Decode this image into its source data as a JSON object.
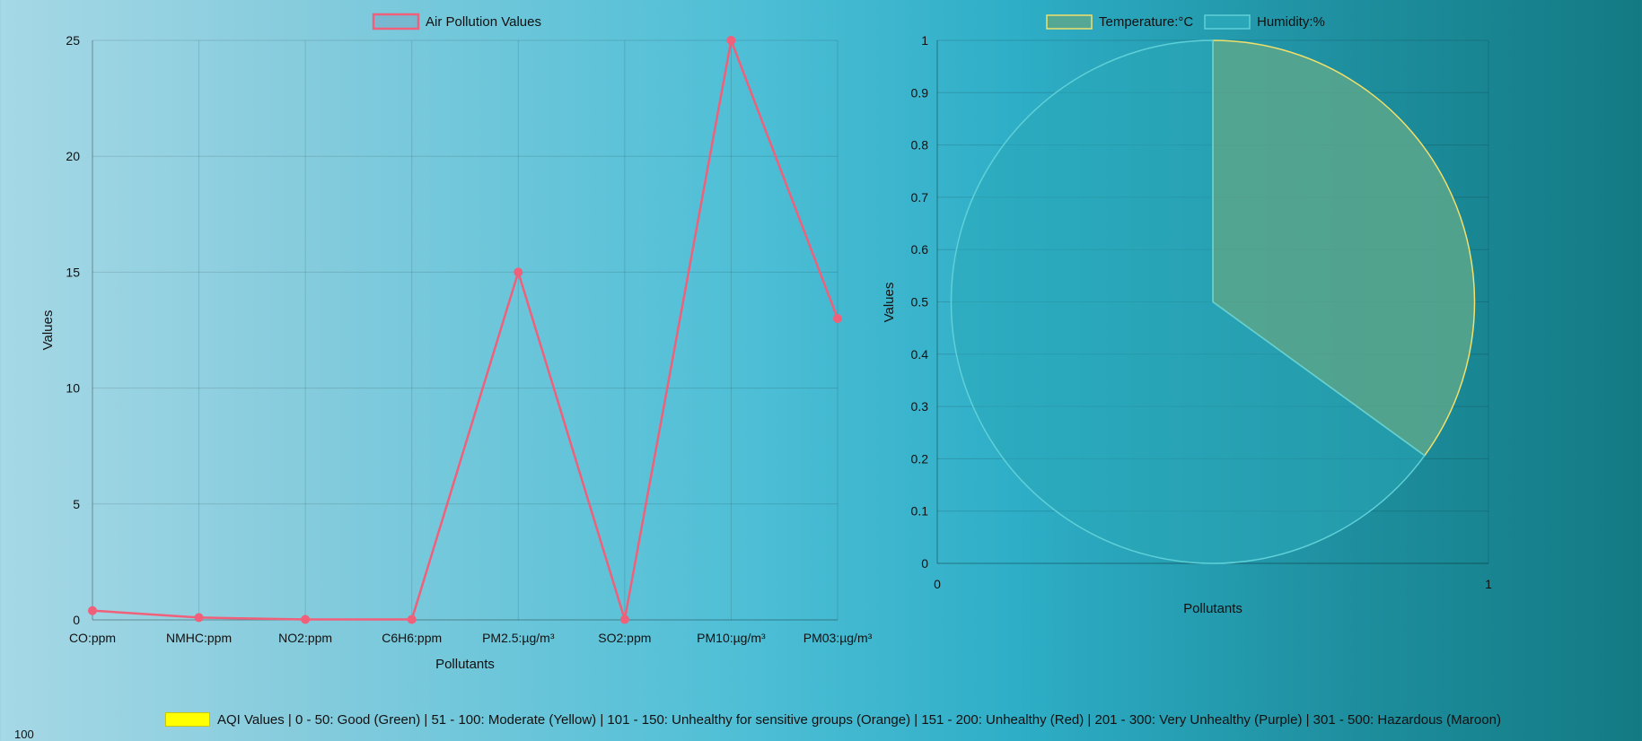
{
  "chart_data": [
    {
      "type": "line",
      "legend": "Air Pollution Values",
      "categories": [
        "CO:ppm",
        "NMHC:ppm",
        "NO2:ppm",
        "C6H6:ppm",
        "PM2.5:µg/m³",
        "SO2:ppm",
        "PM10:µg/m³",
        "PM03:µg/m³"
      ],
      "values": [
        0.4,
        0.1,
        0.02,
        0.02,
        15,
        0.02,
        25,
        13
      ],
      "xlabel": "Pollutants",
      "ylabel": "Values",
      "ylim": [
        0,
        25
      ],
      "yticks": [
        "0",
        "5",
        "10",
        "15",
        "20",
        "25"
      ],
      "grid": true,
      "legend_position": "top",
      "color": "#f0607a"
    },
    {
      "type": "pie",
      "labels": [
        "Temperature:°C",
        "Humidity:%"
      ],
      "values": [
        35,
        65
      ],
      "colors": [
        "#5aa78c",
        "#2aa8b8"
      ],
      "border_colors": [
        "#f2e06a",
        "#5fd0d8"
      ],
      "xlabel": "Pollutants",
      "ylabel": "Values",
      "xticks": [
        "0",
        "1"
      ],
      "yticks": [
        "0",
        "0.1",
        "0.2",
        "0.3",
        "0.4",
        "0.5",
        "0.6",
        "0.7",
        "0.8",
        "0.9",
        "1"
      ],
      "ylim": [
        0,
        1
      ],
      "xlim": [
        0,
        1
      ],
      "grid": true,
      "legend_position": "top"
    }
  ],
  "aqi_legend": {
    "label": "AQI Values | 0 - 50: Good (Green) | 51 - 100: Moderate (Yellow) | 101 - 150: Unhealthy for sensitive groups (Orange) | 151 - 200: Unhealthy (Red) | 201 - 300: Very Unhealthy (Purple) | 301 - 500: Hazardous (Maroon)",
    "color": "#ffff00",
    "partial_tick": "100"
  }
}
